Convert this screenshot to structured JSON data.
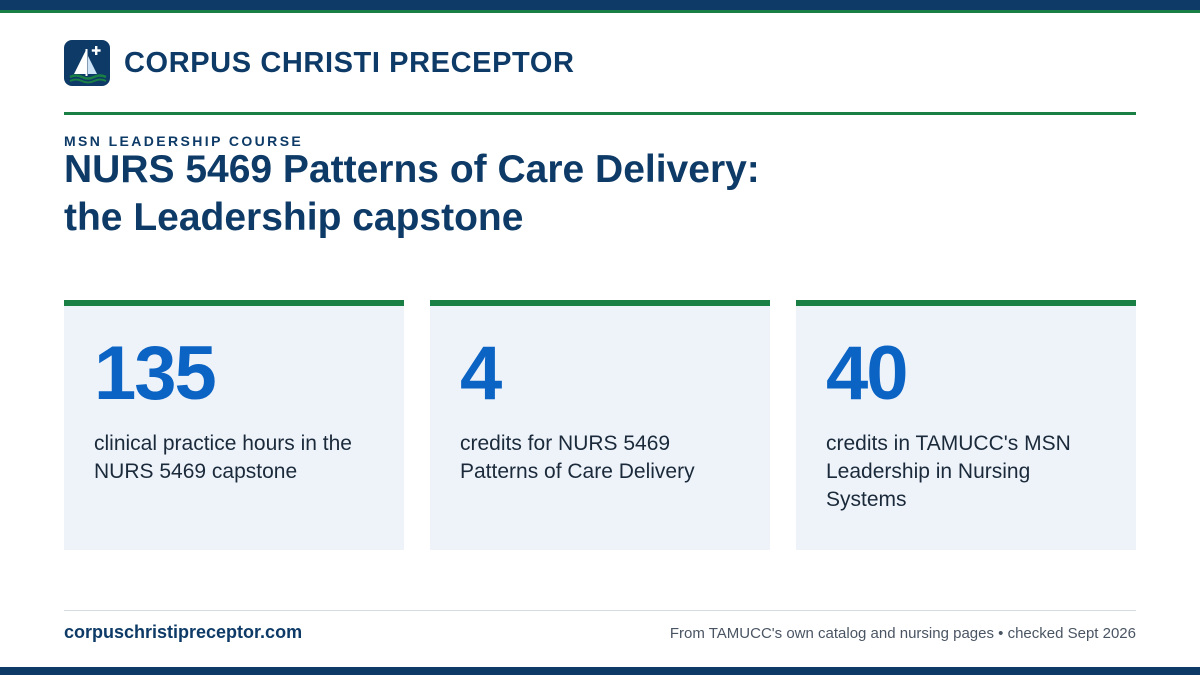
{
  "brand": {
    "name": "CORPUS CHRISTI PRECEPTOR",
    "logo_icon": "sailboat-cross-icon"
  },
  "header": {
    "eyebrow": "MSN LEADERSHIP COURSE",
    "title": "NURS 5469 Patterns of Care Delivery: the Leadership capstone"
  },
  "stats": [
    {
      "value": "135",
      "label": "clinical practice hours in the NURS 5469 capstone"
    },
    {
      "value": "4",
      "label": "credits for NURS 5469 Patterns of Care Delivery"
    },
    {
      "value": "40",
      "label": "credits in TAMUCC's MSN Leadership in Nursing Systems"
    }
  ],
  "footer": {
    "site": "corpuschristipreceptor.com",
    "source": "From TAMUCC's own catalog and nursing pages • checked Sept 2026"
  },
  "colors": {
    "navy": "#0d3a66",
    "green": "#1a7f45",
    "stat_blue": "#0b63c4",
    "card_bg": "#eef3fa"
  }
}
